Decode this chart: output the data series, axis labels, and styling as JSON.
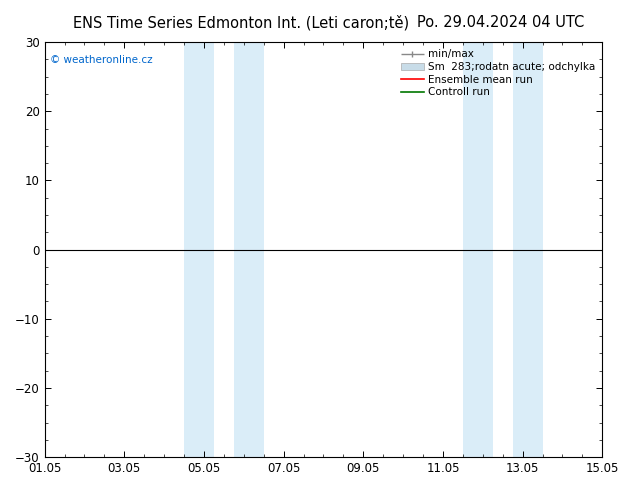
{
  "title": "ENS Time Series Edmonton Int. (Leti caron;tě)",
  "date_label": "Po. 29.04.2024 04 UTC",
  "watermark": "© weatheronline.cz",
  "ylim": [
    -30,
    30
  ],
  "yticks": [
    -30,
    -20,
    -10,
    0,
    10,
    20,
    30
  ],
  "xlabel_dates": [
    "01.05",
    "03.05",
    "05.05",
    "07.05",
    "09.05",
    "11.05",
    "13.05",
    "15.05"
  ],
  "xmin": 0,
  "xmax": 14,
  "shaded_regions": [
    [
      3.5,
      4.25
    ],
    [
      4.75,
      5.5
    ],
    [
      10.5,
      11.25
    ],
    [
      11.75,
      12.5
    ]
  ],
  "shaded_color": "#daedf8",
  "bg_color": "#ffffff",
  "plot_bg_color": "#ffffff",
  "border_color": "#000000",
  "title_fontsize": 10.5,
  "tick_fontsize": 8.5,
  "watermark_color": "#0066cc",
  "legend_min_max_color": "#888888",
  "legend_std_color": "#c8dce8",
  "legend_mean_color": "#ff0000",
  "legend_ctrl_color": "#007700"
}
